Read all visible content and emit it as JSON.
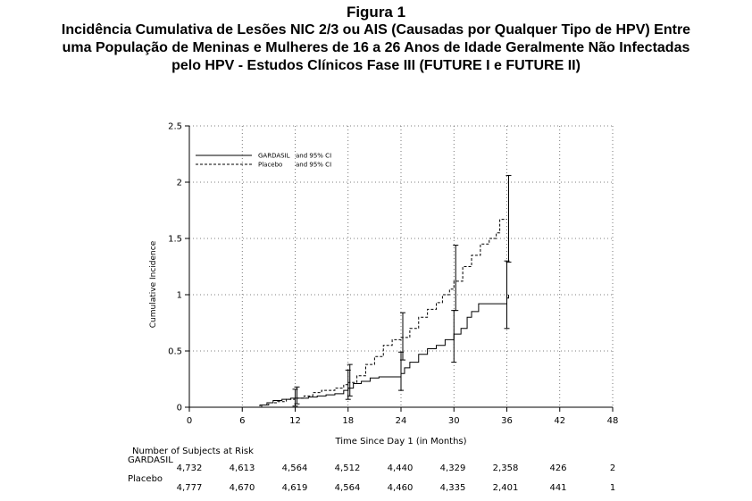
{
  "figure": {
    "label": "Figura 1",
    "title_lines": [
      "Incidência Cumulativa de Lesões NIC 2/3 ou AIS (Causadas por Qualquer Tipo de HPV) Entre",
      "uma População de Meninas e Mulheres de 16 a 26 Anos de Idade Geralmente Não Infectadas",
      "pelo HPV - Estudos Clínicos Fase III (FUTURE I e FUTURE II)"
    ]
  },
  "chart_data": {
    "type": "line",
    "title": "Incidência Cumulativa de Lesões NIC 2/3 ou AIS (Causadas por Qualquer Tipo de HPV) Entre uma População de Meninas e Mulheres de 16 a 26 Anos de Idade Geralmente Não Infectadas pelo HPV - Estudos Clínicos Fase III (FUTURE I e FUTURE II)",
    "xlabel": "Time Since Day 1 (in Months)",
    "ylabel": "Cumulative Incidence",
    "xlim": [
      0,
      48
    ],
    "ylim": [
      0,
      2.5
    ],
    "xticks": [
      0,
      6,
      12,
      18,
      24,
      30,
      36,
      42,
      48
    ],
    "yticks": [
      0,
      0.5,
      1,
      1.5,
      2,
      2.5
    ],
    "grid": true,
    "legend_position": "top-left",
    "series": [
      {
        "name": "GARDASIL",
        "legend_suffix": "and 95% CI",
        "style": "solid",
        "points": [
          [
            0,
            0
          ],
          [
            7.8,
            0
          ],
          [
            8.2,
            0.02
          ],
          [
            8.8,
            0.04
          ],
          [
            9.5,
            0.06
          ],
          [
            10.5,
            0.07
          ],
          [
            11.5,
            0.08
          ],
          [
            12,
            0.08
          ],
          [
            13.5,
            0.09
          ],
          [
            14.5,
            0.1
          ],
          [
            15.5,
            0.11
          ],
          [
            16.5,
            0.12
          ],
          [
            17.5,
            0.15
          ],
          [
            18,
            0.17
          ],
          [
            18.6,
            0.21
          ],
          [
            19.5,
            0.23
          ],
          [
            20.5,
            0.26
          ],
          [
            21.5,
            0.27
          ],
          [
            23.5,
            0.27
          ],
          [
            24,
            0.3
          ],
          [
            24.4,
            0.35
          ],
          [
            25,
            0.4
          ],
          [
            26,
            0.47
          ],
          [
            27,
            0.52
          ],
          [
            28,
            0.55
          ],
          [
            29,
            0.6
          ],
          [
            30,
            0.65
          ],
          [
            30.8,
            0.7
          ],
          [
            31.5,
            0.8
          ],
          [
            32,
            0.85
          ],
          [
            32.8,
            0.92
          ],
          [
            35,
            0.92
          ],
          [
            36,
            0.97
          ],
          [
            36.2,
            1.0
          ]
        ],
        "ci": [
          {
            "x": 12,
            "low": 0.01,
            "high": 0.16
          },
          {
            "x": 18,
            "low": 0.07,
            "high": 0.33
          },
          {
            "x": 24,
            "low": 0.15,
            "high": 0.49
          },
          {
            "x": 30,
            "low": 0.4,
            "high": 0.86
          },
          {
            "x": 36,
            "low": 0.7,
            "high": 1.3
          }
        ]
      },
      {
        "name": "Placebo",
        "legend_suffix": "and 95% CI",
        "style": "dashed",
        "points": [
          [
            0,
            0
          ],
          [
            7.5,
            0
          ],
          [
            8,
            0.02
          ],
          [
            9,
            0.04
          ],
          [
            10,
            0.05
          ],
          [
            11,
            0.07
          ],
          [
            12,
            0.08
          ],
          [
            13,
            0.1
          ],
          [
            14,
            0.13
          ],
          [
            15,
            0.15
          ],
          [
            16.5,
            0.17
          ],
          [
            17.5,
            0.2
          ],
          [
            18,
            0.22
          ],
          [
            19,
            0.28
          ],
          [
            20,
            0.38
          ],
          [
            21,
            0.45
          ],
          [
            22,
            0.55
          ],
          [
            23,
            0.6
          ],
          [
            24,
            0.62
          ],
          [
            25,
            0.7
          ],
          [
            26,
            0.8
          ],
          [
            27,
            0.87
          ],
          [
            28,
            0.93
          ],
          [
            28.7,
            1.0
          ],
          [
            29.5,
            1.05
          ],
          [
            30,
            1.12
          ],
          [
            31,
            1.25
          ],
          [
            32,
            1.35
          ],
          [
            33,
            1.45
          ],
          [
            34,
            1.5
          ],
          [
            34.8,
            1.55
          ],
          [
            35.2,
            1.67
          ],
          [
            36,
            1.67
          ]
        ],
        "ci": [
          {
            "x": 12,
            "low": 0.03,
            "high": 0.18
          },
          {
            "x": 18,
            "low": 0.1,
            "high": 0.38
          },
          {
            "x": 24,
            "low": 0.42,
            "high": 0.84
          },
          {
            "x": 30,
            "low": 0.86,
            "high": 1.44
          },
          {
            "x": 36,
            "low": 1.29,
            "high": 2.06
          }
        ]
      }
    ]
  },
  "risk_table": {
    "heading": "Number of Subjects at Risk",
    "rows": [
      {
        "label": "GARDASIL",
        "values": [
          "4,732",
          "4,613",
          "4,564",
          "4,512",
          "4,440",
          "4,329",
          "2,358",
          "426",
          "2"
        ]
      },
      {
        "label": "Placebo",
        "values": [
          "4,777",
          "4,670",
          "4,619",
          "4,564",
          "4,460",
          "4,335",
          "2,401",
          "441",
          "1"
        ]
      }
    ]
  }
}
